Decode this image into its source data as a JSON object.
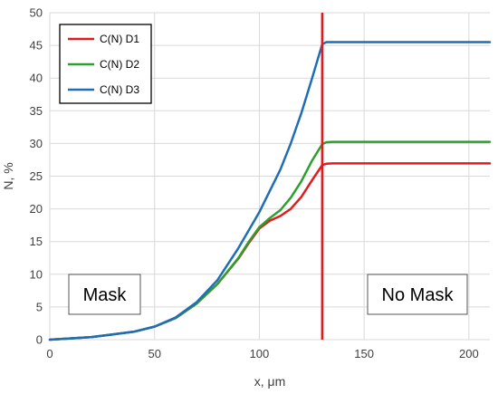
{
  "chart_data": {
    "type": "line",
    "xlabel": "x, μm",
    "ylabel": "N, %",
    "xlim": [
      0,
      210
    ],
    "ylim": [
      0,
      50
    ],
    "xticks": [
      0,
      50,
      100,
      150,
      200
    ],
    "yticks": [
      0,
      5,
      10,
      15,
      20,
      25,
      30,
      35,
      40,
      45,
      50
    ],
    "grid": true,
    "legend_position": "top-left",
    "boundary_x": 130,
    "boundary_color": "#E31A1C",
    "annotations": [
      "Mask",
      "No Mask"
    ],
    "series": [
      {
        "name": "C(N) D1",
        "color": "#E31A1C",
        "x": [
          0,
          10,
          20,
          30,
          40,
          50,
          60,
          70,
          80,
          90,
          95,
          100,
          105,
          110,
          115,
          120,
          125,
          130,
          132,
          135,
          150,
          175,
          210
        ],
        "y": [
          0,
          0.2,
          0.4,
          0.8,
          1.2,
          2.0,
          3.3,
          5.5,
          8.5,
          12.4,
          14.8,
          17.0,
          18.2,
          18.9,
          20.0,
          21.8,
          24.3,
          26.7,
          26.9,
          26.95,
          26.95,
          26.95,
          26.95
        ]
      },
      {
        "name": "C(N) D2",
        "color": "#2CA02C",
        "x": [
          0,
          10,
          20,
          30,
          40,
          50,
          60,
          70,
          80,
          90,
          95,
          100,
          105,
          110,
          115,
          120,
          125,
          130,
          132,
          135,
          150,
          175,
          210
        ],
        "y": [
          0,
          0.2,
          0.4,
          0.8,
          1.2,
          2.0,
          3.3,
          5.5,
          8.5,
          12.5,
          15.0,
          17.2,
          18.6,
          19.8,
          21.7,
          24.2,
          27.3,
          29.9,
          30.2,
          30.25,
          30.25,
          30.25,
          30.25
        ]
      },
      {
        "name": "C(N) D3",
        "color": "#1F6DB4",
        "x": [
          0,
          10,
          20,
          30,
          40,
          50,
          60,
          70,
          80,
          90,
          100,
          110,
          115,
          120,
          125,
          130,
          132,
          135,
          150,
          175,
          210
        ],
        "y": [
          0,
          0.2,
          0.4,
          0.8,
          1.2,
          2.0,
          3.4,
          5.7,
          9.1,
          14.0,
          19.5,
          26.0,
          30.0,
          34.6,
          39.8,
          45.2,
          45.5,
          45.5,
          45.5,
          45.5,
          45.5
        ]
      }
    ]
  }
}
